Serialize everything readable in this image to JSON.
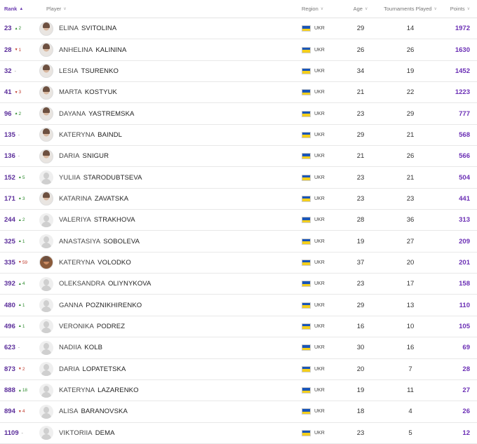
{
  "header": {
    "rank": "Rank",
    "player": "Player",
    "region": "Region",
    "age": "Age",
    "tournaments": "Tournaments Played",
    "points": "Points"
  },
  "colors": {
    "accent": "#6b2fb5",
    "up": "#2c8a2c",
    "down": "#c0392b"
  },
  "rows": [
    {
      "rank": "23",
      "dir": "up",
      "move": "2",
      "first": "ELINA",
      "last": "SVITOLINA",
      "avatar": "photo",
      "region": "UKR",
      "age": "29",
      "tournaments": "14",
      "points": "1972"
    },
    {
      "rank": "28",
      "dir": "down",
      "move": "1",
      "first": "ANHELINA",
      "last": "KALININA",
      "avatar": "photo",
      "region": "UKR",
      "age": "26",
      "tournaments": "26",
      "points": "1630"
    },
    {
      "rank": "32",
      "dir": "same",
      "move": "-",
      "first": "LESIA",
      "last": "TSURENKO",
      "avatar": "photo",
      "region": "UKR",
      "age": "34",
      "tournaments": "19",
      "points": "1452"
    },
    {
      "rank": "41",
      "dir": "down",
      "move": "3",
      "first": "MARTA",
      "last": "KOSTYUK",
      "avatar": "photo",
      "region": "UKR",
      "age": "21",
      "tournaments": "22",
      "points": "1223"
    },
    {
      "rank": "96",
      "dir": "up",
      "move": "2",
      "first": "DAYANA",
      "last": "YASTREMSKA",
      "avatar": "photo",
      "region": "UKR",
      "age": "23",
      "tournaments": "29",
      "points": "777"
    },
    {
      "rank": "135",
      "dir": "same",
      "move": "-",
      "first": "KATERYNA",
      "last": "BAINDL",
      "avatar": "photo",
      "region": "UKR",
      "age": "29",
      "tournaments": "21",
      "points": "568"
    },
    {
      "rank": "136",
      "dir": "same",
      "move": "-",
      "first": "DARIA",
      "last": "SNIGUR",
      "avatar": "photo",
      "region": "UKR",
      "age": "21",
      "tournaments": "26",
      "points": "566"
    },
    {
      "rank": "152",
      "dir": "up",
      "move": "5",
      "first": "YULIIA",
      "last": "STARODUBTSEVA",
      "avatar": "placeholder",
      "region": "UKR",
      "age": "23",
      "tournaments": "21",
      "points": "504"
    },
    {
      "rank": "171",
      "dir": "up",
      "move": "3",
      "first": "KATARINA",
      "last": "ZAVATSKA",
      "avatar": "photo",
      "region": "UKR",
      "age": "23",
      "tournaments": "23",
      "points": "441"
    },
    {
      "rank": "244",
      "dir": "up",
      "move": "2",
      "first": "VALERIYA",
      "last": "STRAKHOVA",
      "avatar": "placeholder",
      "region": "UKR",
      "age": "28",
      "tournaments": "36",
      "points": "313"
    },
    {
      "rank": "325",
      "dir": "up",
      "move": "1",
      "first": "ANASTASIYA",
      "last": "SOBOLEVA",
      "avatar": "placeholder",
      "region": "UKR",
      "age": "19",
      "tournaments": "27",
      "points": "209"
    },
    {
      "rank": "335",
      "dir": "down",
      "move": "59",
      "first": "KATERYNA",
      "last": "VOLODKO",
      "avatar": "photo-dark",
      "region": "UKR",
      "age": "37",
      "tournaments": "20",
      "points": "201"
    },
    {
      "rank": "392",
      "dir": "up",
      "move": "4",
      "first": "OLEKSANDRA",
      "last": "OLIYNYKOVA",
      "avatar": "placeholder",
      "region": "UKR",
      "age": "23",
      "tournaments": "17",
      "points": "158"
    },
    {
      "rank": "480",
      "dir": "up",
      "move": "1",
      "first": "GANNA",
      "last": "POZNIKHIRENKO",
      "avatar": "placeholder",
      "region": "UKR",
      "age": "29",
      "tournaments": "13",
      "points": "110"
    },
    {
      "rank": "496",
      "dir": "up",
      "move": "1",
      "first": "VERONIKA",
      "last": "PODREZ",
      "avatar": "placeholder",
      "region": "UKR",
      "age": "16",
      "tournaments": "10",
      "points": "105"
    },
    {
      "rank": "623",
      "dir": "same",
      "move": "-",
      "first": "NADIIA",
      "last": "KOLB",
      "avatar": "placeholder",
      "region": "UKR",
      "age": "30",
      "tournaments": "16",
      "points": "69"
    },
    {
      "rank": "873",
      "dir": "down",
      "move": "2",
      "first": "DARIA",
      "last": "LOPATETSKA",
      "avatar": "placeholder",
      "region": "UKR",
      "age": "20",
      "tournaments": "7",
      "points": "28"
    },
    {
      "rank": "888",
      "dir": "up",
      "move": "18",
      "first": "KATERYNA",
      "last": "LAZARENKO",
      "avatar": "placeholder",
      "region": "UKR",
      "age": "19",
      "tournaments": "11",
      "points": "27"
    },
    {
      "rank": "894",
      "dir": "down",
      "move": "4",
      "first": "ALISA",
      "last": "BARANOVSKA",
      "avatar": "placeholder",
      "region": "UKR",
      "age": "18",
      "tournaments": "4",
      "points": "26"
    },
    {
      "rank": "1109",
      "dir": "same",
      "move": "-",
      "first": "VIKTORIIA",
      "last": "DEMA",
      "avatar": "placeholder",
      "region": "UKR",
      "age": "23",
      "tournaments": "5",
      "points": "12"
    }
  ]
}
